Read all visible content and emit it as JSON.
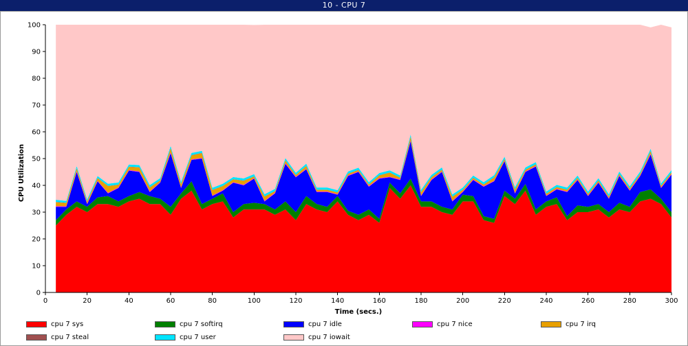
{
  "window": {
    "title": "10 - CPU 7"
  },
  "chart_data": {
    "type": "area",
    "stacked": true,
    "xlabel": "Time (secs.)",
    "ylabel": "CPU Utilization",
    "xlim": [
      0,
      300
    ],
    "ylim": [
      0,
      100
    ],
    "xticks": [
      0,
      20,
      40,
      60,
      80,
      100,
      120,
      140,
      160,
      180,
      200,
      220,
      240,
      260,
      280,
      300
    ],
    "yticks": [
      0,
      10,
      20,
      30,
      40,
      50,
      60,
      70,
      80,
      90,
      100
    ],
    "grid": false,
    "legend_position": "bottom",
    "x": [
      5,
      10,
      15,
      20,
      25,
      30,
      35,
      40,
      45,
      50,
      55,
      60,
      65,
      70,
      75,
      80,
      85,
      90,
      95,
      100,
      105,
      110,
      115,
      120,
      125,
      130,
      135,
      140,
      145,
      150,
      155,
      160,
      165,
      170,
      175,
      180,
      185,
      190,
      195,
      200,
      205,
      210,
      215,
      220,
      225,
      230,
      235,
      240,
      245,
      250,
      255,
      260,
      265,
      270,
      275,
      280,
      285,
      290,
      295,
      300
    ],
    "series": [
      {
        "name": "cpu 7 sys",
        "color": "#ff0000",
        "values": [
          25,
          29,
          32,
          30,
          33,
          33,
          32,
          34,
          35,
          33,
          33,
          29,
          35,
          38,
          31,
          33,
          34,
          28,
          31,
          31,
          31,
          29,
          31,
          27,
          33,
          31,
          30,
          34,
          29,
          27,
          29,
          26,
          39,
          35,
          40,
          32,
          32,
          30,
          29,
          34,
          34,
          27,
          26,
          36,
          33,
          38,
          29,
          32,
          33,
          27,
          30,
          30,
          31,
          28,
          31,
          30,
          34,
          35,
          33,
          28
        ]
      },
      {
        "name": "cpu 7 softirq",
        "color": "#008000",
        "values": [
          2,
          2,
          2,
          2,
          2.5,
          3,
          2,
          2,
          2.5,
          3,
          2,
          3,
          2,
          3.5,
          2,
          2,
          3,
          2,
          2,
          2.5,
          2,
          2,
          3,
          3,
          3,
          2,
          2,
          2,
          1.5,
          2,
          2,
          1.5,
          2,
          2,
          2.5,
          2,
          2,
          2,
          2,
          2.5,
          2,
          1.5,
          1.5,
          2,
          2,
          2.5,
          2,
          2,
          2.5,
          1.5,
          2.5,
          2,
          2,
          2,
          2.5,
          2,
          3.5,
          3.5,
          2,
          2
        ]
      },
      {
        "name": "cpu 7 idle",
        "color": "#0000ff",
        "values": [
          5,
          1,
          11,
          1,
          6,
          1,
          5,
          9.5,
          7.5,
          1.5,
          6,
          20,
          2,
          8,
          17,
          1,
          1,
          11,
          7,
          9,
          1,
          6,
          14,
          13,
          10,
          4.5,
          5.5,
          0.5,
          13,
          16,
          8.5,
          15,
          2,
          5,
          14,
          2,
          8,
          13,
          3,
          1,
          6,
          11,
          14,
          11,
          2,
          4.5,
          16,
          2,
          3,
          9,
          9.5,
          4,
          8,
          5,
          10,
          6,
          6,
          13,
          4,
          14
        ]
      },
      {
        "name": "cpu 7 nice",
        "color": "#ff00ff",
        "values": [
          0.2,
          0.2,
          0.3,
          0.2,
          0.2,
          0.2,
          0.2,
          0.2,
          0.2,
          0.2,
          0.2,
          0.3,
          0.2,
          0.2,
          0.2,
          0.2,
          0.2,
          0.2,
          0.2,
          0.2,
          0.2,
          0.2,
          0.3,
          0.2,
          0.2,
          0.2,
          0.2,
          0.2,
          0.2,
          0.2,
          0.2,
          0.2,
          0.2,
          0.2,
          0.3,
          0.2,
          0.2,
          0.2,
          0.2,
          0.2,
          0.2,
          0.2,
          0.2,
          0.2,
          0.2,
          0.2,
          0.2,
          0.2,
          0.2,
          0.2,
          0.2,
          0.2,
          0.2,
          0.2,
          0.2,
          0.2,
          0.2,
          0.3,
          0.2,
          0.2
        ]
      },
      {
        "name": "cpu 7 irq",
        "color": "#e8a000",
        "values": [
          1.5,
          1.2,
          1,
          0.8,
          1,
          2.5,
          1,
          1.2,
          1.5,
          1.5,
          0.6,
          1.5,
          1.2,
          1.5,
          1.8,
          2,
          1.5,
          1,
          1.5,
          0.6,
          1.6,
          0.6,
          1,
          0.6,
          1,
          0.6,
          0.6,
          0.6,
          0.6,
          0.5,
          0.6,
          1,
          1.5,
          0.6,
          1.3,
          1.2,
          0.8,
          0.6,
          1.5,
          0.6,
          0.6,
          0.6,
          1.2,
          0.6,
          1.2,
          0.6,
          0.6,
          0.6,
          0.6,
          0.6,
          0.6,
          0.6,
          0.6,
          0.6,
          0.6,
          0.6,
          0.6,
          1,
          0.6,
          0.6
        ]
      },
      {
        "name": "cpu 7 steal",
        "color": "#a05050",
        "values": [
          0.1,
          0.1,
          0.1,
          0.1,
          0.1,
          0.1,
          0.1,
          0.1,
          0.1,
          0.1,
          0.1,
          0.1,
          0.1,
          0.1,
          0.1,
          0.1,
          0.1,
          0.1,
          0.1,
          0.1,
          0.1,
          0.1,
          0.1,
          0.1,
          0.1,
          0.1,
          0.1,
          0.1,
          0.1,
          0.1,
          0.1,
          0.1,
          0.1,
          0.1,
          0.1,
          0.1,
          0.1,
          0.1,
          0.1,
          0.1,
          0.1,
          0.1,
          0.1,
          0.1,
          0.1,
          0.1,
          0.1,
          0.1,
          0.1,
          0.1,
          0.1,
          0.1,
          0.1,
          0.1,
          0.1,
          0.1,
          0.1,
          0.1,
          0.1,
          0.1
        ]
      },
      {
        "name": "cpu 7 user",
        "color": "#00e5ff",
        "values": [
          0.8,
          0.7,
          0.8,
          0.7,
          0.7,
          0.8,
          0.8,
          0.8,
          0.8,
          0.8,
          0.8,
          0.8,
          0.8,
          0.8,
          0.8,
          0.8,
          0.8,
          0.8,
          0.8,
          0.8,
          0.8,
          0.8,
          0.8,
          0.8,
          0.8,
          0.8,
          0.8,
          0.8,
          0.8,
          0.8,
          0.8,
          0.8,
          0.8,
          0.8,
          0.8,
          0.8,
          0.8,
          0.8,
          0.8,
          0.8,
          0.8,
          0.8,
          0.8,
          0.8,
          0.8,
          0.8,
          0.8,
          0.8,
          0.8,
          0.8,
          0.8,
          0.8,
          0.8,
          0.8,
          0.8,
          0.8,
          0.8,
          0.8,
          0.8,
          0.8
        ]
      },
      {
        "name": "cpu 7 iowait",
        "color": "#ffc8c8",
        "values": [
          65.4,
          65.8,
          52.8,
          65.2,
          56.5,
          59.4,
          58.9,
          52.2,
          52.5,
          60.9,
          57.3,
          45.3,
          58.7,
          47.9,
          47.1,
          60.9,
          59.4,
          56.9,
          57.4,
          55.7,
          63.3,
          61.3,
          49.8,
          55.3,
          51.9,
          60.8,
          60.8,
          61.8,
          54.8,
          53.4,
          58.8,
          55.4,
          54.4,
          56.3,
          41.0,
          61.7,
          56.1,
          53.3,
          63.4,
          60.8,
          56.3,
          58.8,
          56.2,
          50.3,
          60.7,
          53.3,
          51.3,
          62.3,
          59.8,
          61.6,
          57.1,
          63.2,
          57.3,
          63.3,
          55.8,
          60.3,
          55.3,
          45.3,
          59.3,
          53.3
        ]
      }
    ]
  }
}
